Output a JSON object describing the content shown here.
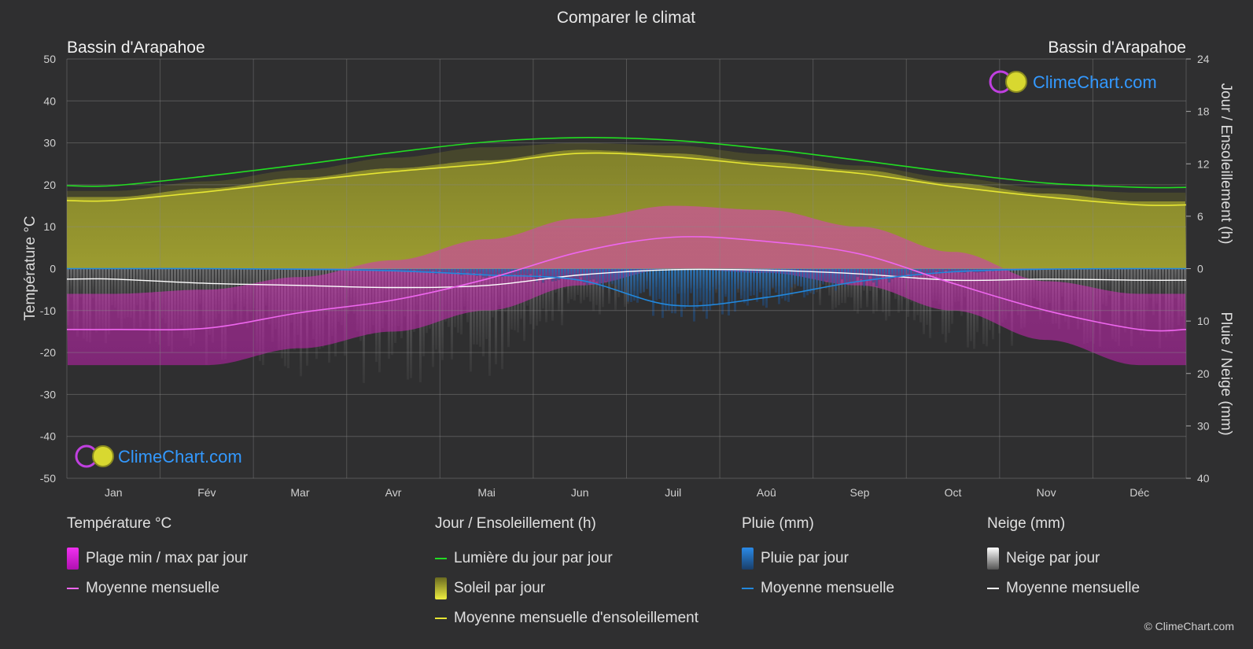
{
  "title": "Comparer le climat",
  "location_left": "Bassin d'Arapahoe",
  "location_right": "Bassin d'Arapahoe",
  "brand": "ClimeChart.com",
  "copyright": "© ClimeChart.com",
  "colors": {
    "background": "#2f2f30",
    "daylight": "#22dd22",
    "sunshine_line": "#e6e633",
    "sunshine_fill": "#b0b030",
    "temp_range": "#e020d0",
    "temp_mean": "#ee66ee",
    "rain": "#2288dd",
    "snow": "#cccccc",
    "snow_mean": "#ffffff",
    "brand": "#3399ff"
  },
  "chart_data": {
    "type": "line",
    "title": "Comparer le climat",
    "categories": [
      "Jan",
      "Fév",
      "Mar",
      "Avr",
      "Mai",
      "Jun",
      "Juil",
      "Aoû",
      "Sep",
      "Oct",
      "Nov",
      "Déc"
    ],
    "axes": {
      "left": {
        "label": "Température °C",
        "min": -50,
        "max": 50,
        "ticks": [
          "50",
          "40",
          "30",
          "20",
          "10",
          "0",
          "-10",
          "-20",
          "-30",
          "-40",
          "-50"
        ]
      },
      "right_top": {
        "label": "Jour / Ensoleillement (h)",
        "min": 0,
        "max": 24,
        "ticks": [
          "24",
          "18",
          "12",
          "6",
          "0"
        ]
      },
      "right_bottom": {
        "label": "Pluie / Neige (mm)",
        "min": 0,
        "max": 40,
        "ticks": [
          "10",
          "20",
          "30",
          "40"
        ]
      }
    },
    "grid": true,
    "series": [
      {
        "name": "Lumière du jour par jour",
        "axis": "hours",
        "values": [
          9.5,
          10.6,
          11.9,
          13.3,
          14.5,
          15.0,
          14.7,
          13.7,
          12.4,
          11.0,
          9.8,
          9.3
        ]
      },
      {
        "name": "Moyenne mensuelle d'ensoleillement",
        "axis": "hours",
        "values": [
          7.8,
          8.8,
          10.0,
          11.1,
          12.0,
          13.2,
          12.8,
          11.8,
          10.9,
          9.4,
          8.2,
          7.3
        ]
      },
      {
        "name": "Moyenne mensuelle",
        "group": "Température °C",
        "axis": "temperature",
        "values": [
          -14.5,
          -14.2,
          -10.5,
          -7.5,
          -2.5,
          4.0,
          7.5,
          6.5,
          3.5,
          -3.5,
          -10.0,
          -14.5
        ]
      },
      {
        "name": "Plage min / max par jour (max)",
        "group": "Température °C",
        "axis": "temperature",
        "values": [
          -6,
          -5,
          -2,
          2,
          7,
          12,
          15,
          14,
          10,
          4,
          -3,
          -6
        ]
      },
      {
        "name": "Plage min / max par jour (min)",
        "group": "Température °C",
        "axis": "temperature",
        "values": [
          -23,
          -23,
          -19,
          -15,
          -10,
          -4,
          0,
          -1,
          -4,
          -10,
          -17,
          -23
        ]
      },
      {
        "name": "Moyenne mensuelle",
        "group": "Pluie (mm)",
        "axis": "precipitation",
        "values": [
          0.0,
          0.0,
          0.1,
          0.4,
          1.2,
          2.2,
          7.0,
          5.5,
          2.4,
          0.6,
          0.1,
          0.0
        ]
      },
      {
        "name": "Moyenne mensuelle",
        "group": "Neige (mm)",
        "axis": "precipitation",
        "values": [
          2.0,
          2.8,
          3.2,
          3.6,
          3.2,
          1.2,
          0.2,
          0.3,
          1.0,
          2.2,
          2.0,
          2.2
        ]
      }
    ]
  },
  "legend": {
    "temperature": {
      "title": "Température °C",
      "items": [
        "Plage min / max par jour",
        "Moyenne mensuelle"
      ]
    },
    "sunshine": {
      "title": "Jour / Ensoleillement (h)",
      "items": [
        "Lumière du jour par jour",
        "Soleil par jour",
        "Moyenne mensuelle d'ensoleillement"
      ]
    },
    "rain": {
      "title": "Pluie (mm)",
      "items": [
        "Pluie par jour",
        "Moyenne mensuelle"
      ]
    },
    "snow": {
      "title": "Neige (mm)",
      "items": [
        "Neige par jour",
        "Moyenne mensuelle"
      ]
    }
  }
}
